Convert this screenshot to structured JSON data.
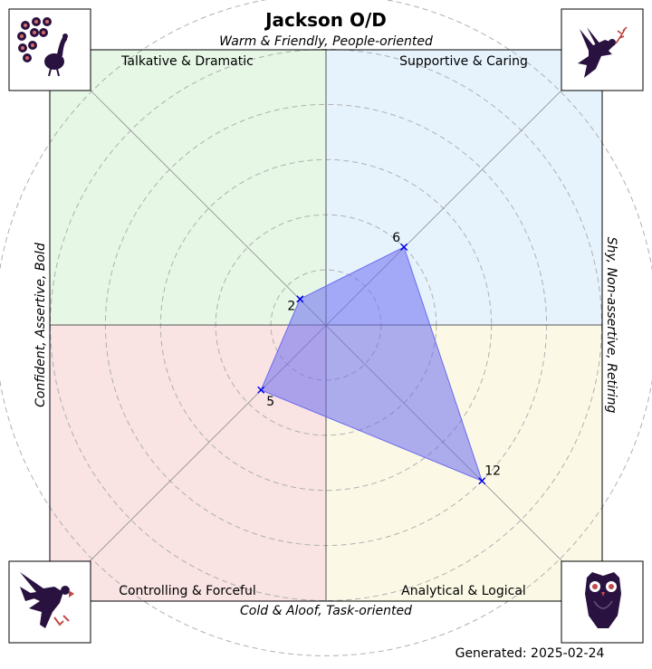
{
  "chart_data": {
    "type": "radar",
    "title": "Jackson O/D",
    "axis_labels": {
      "top": "Warm & Friendly, People-oriented",
      "bottom": "Cold & Aloof, Task-oriented",
      "left": "Confident, Assertive, Bold",
      "right": "Shy, Non-assertive, Retiring"
    },
    "quadrants": [
      {
        "name": "Talkative & Dramatic",
        "position": "top-left",
        "color": "#e6f7e6",
        "icon": "peacock-icon"
      },
      {
        "name": "Supportive & Caring",
        "position": "top-right",
        "color": "#e6f3fd",
        "icon": "dove-icon"
      },
      {
        "name": "Controlling & Forceful",
        "position": "bottom-left",
        "color": "#f9e3e3",
        "icon": "eagle-icon"
      },
      {
        "name": "Analytical & Logical",
        "position": "bottom-right",
        "color": "#fbf9e6",
        "icon": "owl-icon"
      }
    ],
    "series": [
      {
        "values": [
          {
            "quadrant": "Talkative & Dramatic",
            "value": 2
          },
          {
            "quadrant": "Supportive & Caring",
            "value": 6
          },
          {
            "quadrant": "Analytical & Logical",
            "value": 12
          },
          {
            "quadrant": "Controlling & Forceful",
            "value": 5
          }
        ],
        "fill": "#6b6bf0",
        "marker_color": "#0000ee"
      }
    ],
    "r_max": 18,
    "r_grid_step": 3,
    "grid": true
  },
  "footer": {
    "generated": "Generated: 2025-02-24"
  }
}
